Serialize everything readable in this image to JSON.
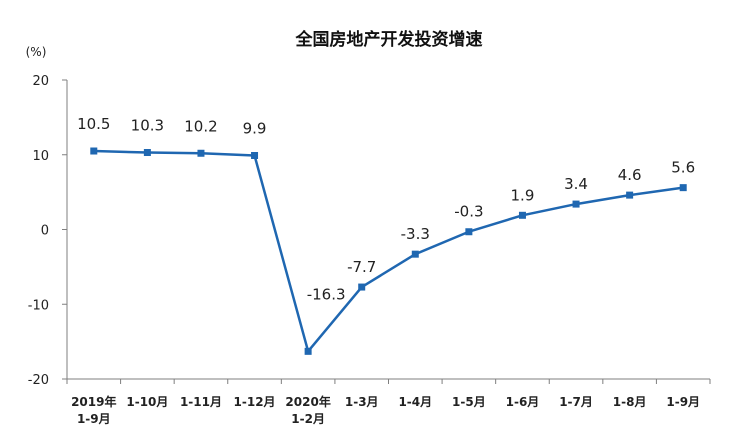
{
  "chart_data": {
    "type": "line",
    "title": "全国房地产开发投资增速",
    "ylabel": "(%)",
    "ylim": [
      -20,
      20
    ],
    "yticks": [
      "20",
      "10",
      "0",
      "-10",
      "-20"
    ],
    "categories": [
      [
        "2019年",
        "1-9月"
      ],
      [
        "1-10月"
      ],
      [
        "1-11月"
      ],
      [
        "1-12月"
      ],
      [
        "2020年",
        "1-2月"
      ],
      [
        "1-3月"
      ],
      [
        "1-4月"
      ],
      [
        "1-5月"
      ],
      [
        "1-6月"
      ],
      [
        "1-7月"
      ],
      [
        "1-8月"
      ],
      [
        "1-9月"
      ]
    ],
    "values": [
      10.5,
      10.3,
      10.2,
      9.9,
      -16.3,
      -7.7,
      -3.3,
      -0.3,
      1.9,
      3.4,
      4.6,
      5.6
    ],
    "labels": [
      "10.5",
      "10.3",
      "10.2",
      "9.9",
      "-16.3",
      "-7.7",
      "-3.3",
      "-0.3",
      "1.9",
      "3.4",
      "4.6",
      "5.6"
    ],
    "line_color": "#1f67b1",
    "grid": false
  }
}
